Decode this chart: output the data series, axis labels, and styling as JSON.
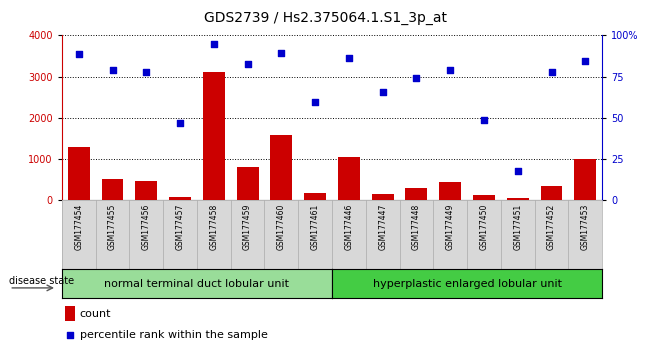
{
  "title": "GDS2739 / Hs2.375064.1.S1_3p_at",
  "categories": [
    "GSM177454",
    "GSM177455",
    "GSM177456",
    "GSM177457",
    "GSM177458",
    "GSM177459",
    "GSM177460",
    "GSM177461",
    "GSM177446",
    "GSM177447",
    "GSM177448",
    "GSM177449",
    "GSM177450",
    "GSM177451",
    "GSM177452",
    "GSM177453"
  ],
  "bar_values": [
    1300,
    500,
    450,
    80,
    3100,
    800,
    1570,
    180,
    1050,
    140,
    300,
    430,
    110,
    60,
    350,
    1000
  ],
  "scatter_values": [
    3550,
    3150,
    3100,
    1870,
    3800,
    3300,
    3570,
    2380,
    3450,
    2620,
    2960,
    3160,
    1940,
    700,
    3100,
    3380
  ],
  "bar_color": "#cc0000",
  "scatter_color": "#0000cc",
  "left_ylim": [
    0,
    4000
  ],
  "right_ylim": [
    0,
    100
  ],
  "left_yticks": [
    0,
    1000,
    2000,
    3000,
    4000
  ],
  "right_yticks": [
    0,
    25,
    50,
    75,
    100
  ],
  "right_yticklabels": [
    "0",
    "25",
    "50",
    "75",
    "100%"
  ],
  "group1_label": "normal terminal duct lobular unit",
  "group2_label": "hyperplastic enlarged lobular unit",
  "group1_color": "#99dd99",
  "group2_color": "#44cc44",
  "group1_count": 8,
  "group2_count": 8,
  "disease_state_label": "disease state",
  "legend_count_label": "count",
  "legend_pct_label": "percentile rank within the sample",
  "title_fontsize": 10,
  "tick_fontsize": 7,
  "label_fontsize": 8,
  "panel_bg": "#e8e8e8",
  "cell_bg": "#d8d8d8"
}
